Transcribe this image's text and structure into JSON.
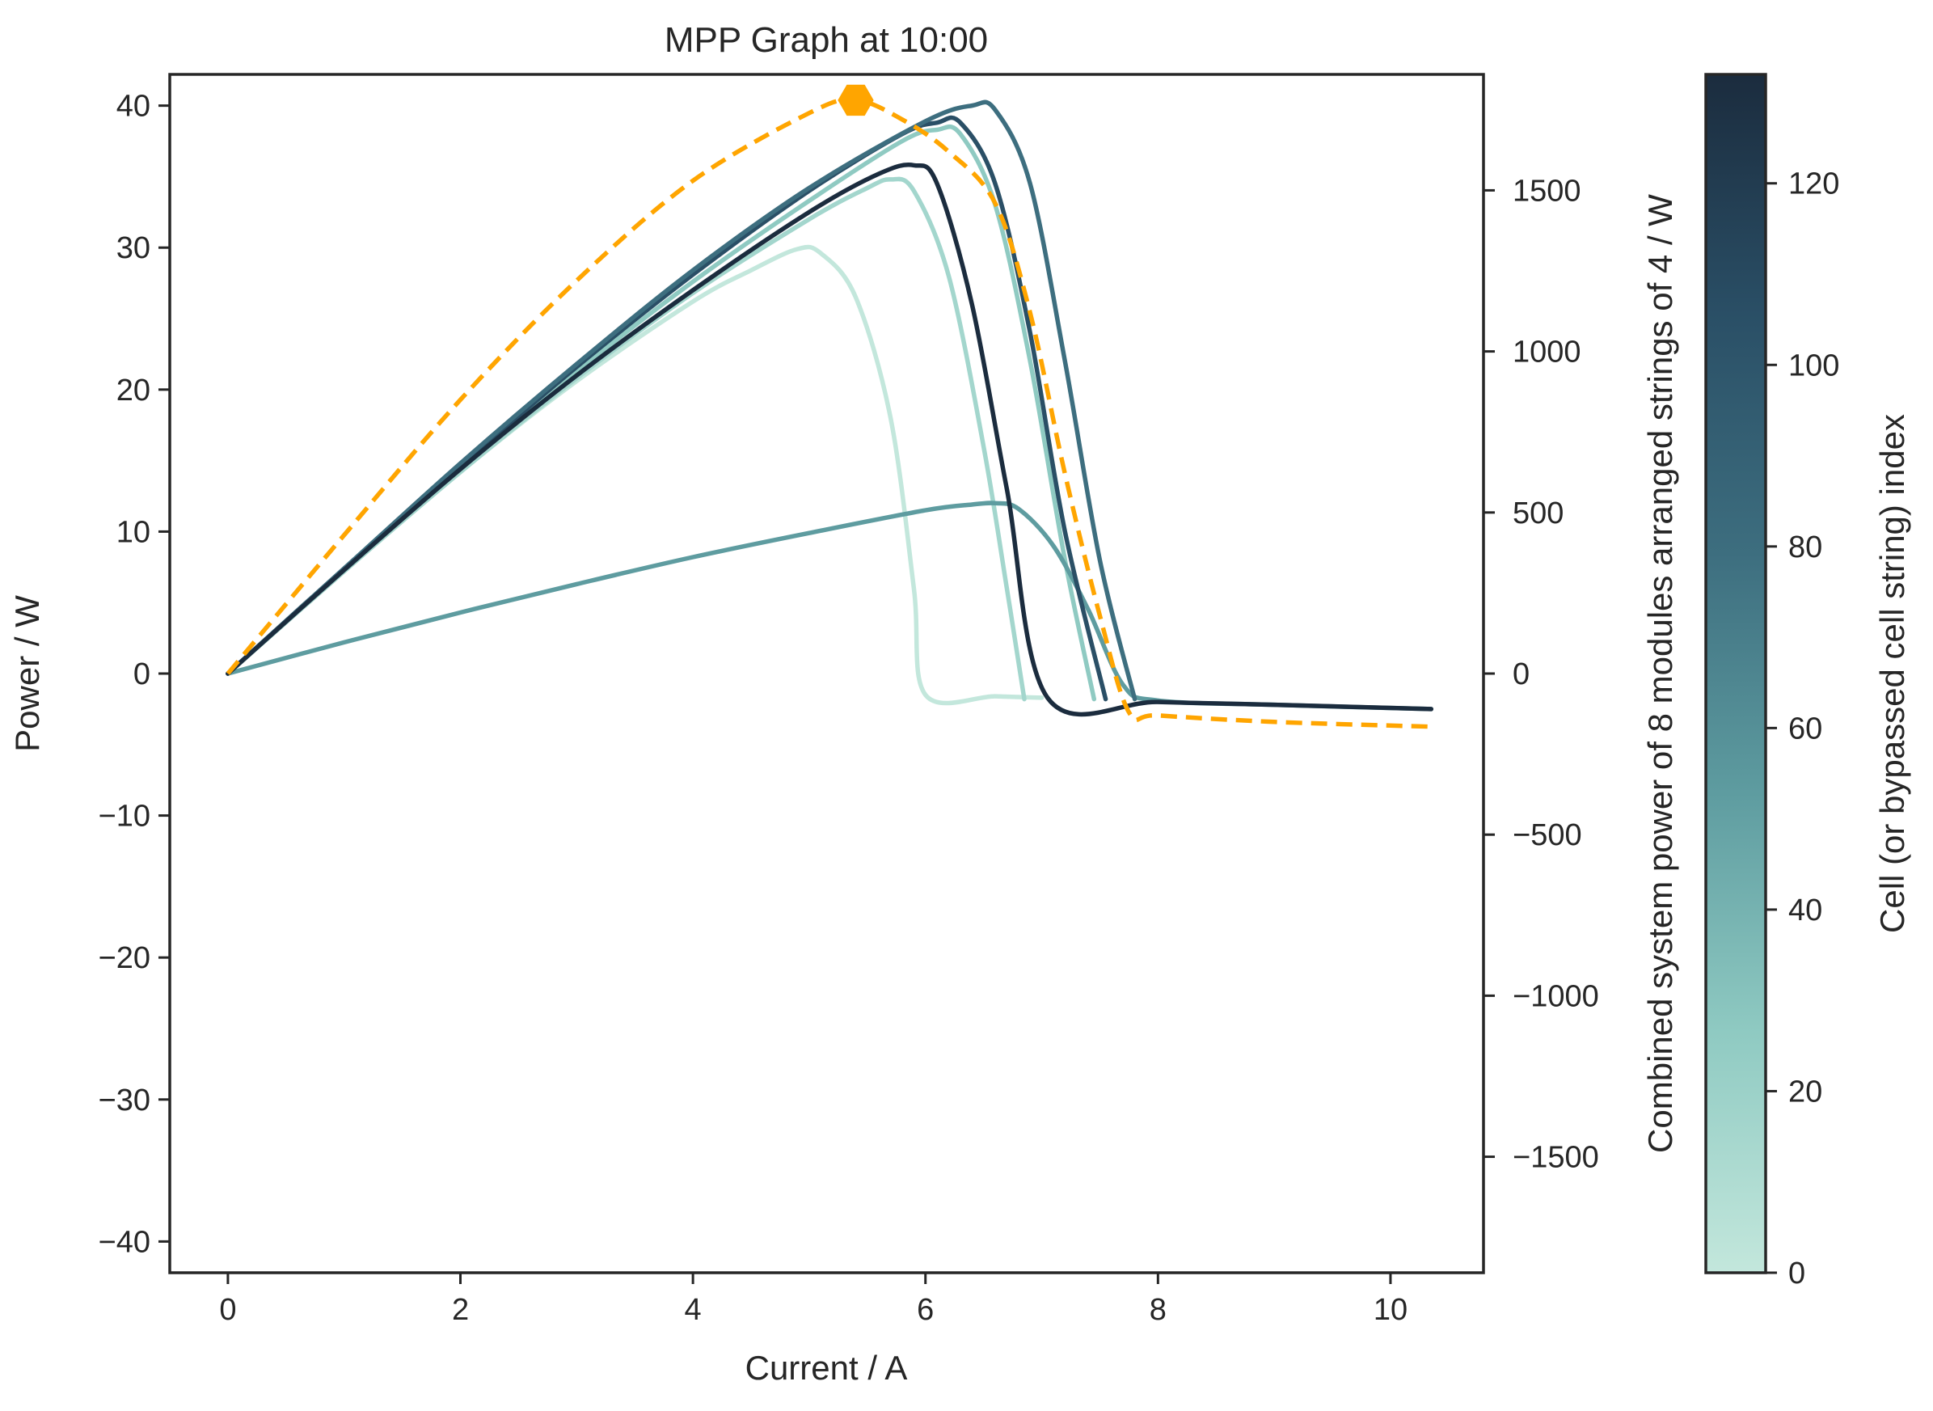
{
  "chart_data": {
    "type": "line",
    "title": "MPP Graph at 10:00",
    "xlabel": "Current / A",
    "ylabel": "Power / W",
    "y2label": "Combined system power of 8 modules arranged strings of 4 / W",
    "colorbar_label": "Cell (or bypassed cell string) index",
    "xlim": [
      -0.5,
      10.8
    ],
    "ylim": [
      -42.2,
      42.2
    ],
    "y2lim": [
      -1860,
      1860
    ],
    "colorbar_lim": [
      0,
      132
    ],
    "xticks": [
      0,
      2,
      4,
      6,
      8,
      10
    ],
    "yticks": [
      40,
      30,
      20,
      10,
      0,
      -10,
      -20,
      -30,
      -40
    ],
    "y2ticks": [
      1500,
      1000,
      500,
      0,
      -500,
      -1000,
      -1500
    ],
    "colorbar_ticks": [
      0,
      20,
      40,
      60,
      80,
      100,
      120
    ],
    "xtick_labels": [
      "0",
      "2",
      "4",
      "6",
      "8",
      "10"
    ],
    "ytick_labels": [
      "40",
      "30",
      "20",
      "10",
      "0",
      "−10",
      "−20",
      "−30",
      "−40"
    ],
    "y2tick_labels": [
      "1500",
      "1000",
      "500",
      "0",
      "−500",
      "−1000",
      "−1500"
    ],
    "colorbar_tick_labels": [
      "0",
      "20",
      "40",
      "60",
      "80",
      "100",
      "120"
    ],
    "grid": false,
    "colormap": [
      "#c3e7dc",
      "#8fcac2",
      "#5e9ca0",
      "#3d6e7f",
      "#2a4f66",
      "#1b2c3e"
    ],
    "series": [
      {
        "color": "#c3e7dc",
        "x": [
          0,
          1,
          2,
          3,
          4,
          4.5,
          4.9,
          5.1,
          5.4,
          5.7,
          5.9,
          6.0,
          6.6,
          7.0
        ],
        "y": [
          0,
          7.2,
          14.2,
          20.6,
          26.2,
          28.4,
          29.9,
          29.6,
          26.5,
          18.0,
          6.0,
          -1.5,
          -1.6,
          -1.7
        ]
      },
      {
        "color": "#a3d6cd",
        "x": [
          0,
          1,
          2,
          3,
          4,
          5,
          5.5,
          5.7,
          5.9,
          6.2,
          6.5,
          6.7,
          6.85
        ],
        "y": [
          0,
          7.2,
          14.2,
          20.8,
          26.8,
          32.0,
          34.2,
          34.8,
          34.0,
          28.0,
          16.0,
          6.0,
          -1.8
        ]
      },
      {
        "color": "#8fcac2",
        "x": [
          0,
          1,
          2,
          3,
          4,
          5,
          5.8,
          6.1,
          6.3,
          6.6,
          6.9,
          7.2,
          7.45
        ],
        "y": [
          0,
          7.3,
          14.5,
          21.3,
          27.6,
          33.3,
          37.5,
          38.3,
          38.0,
          33.0,
          22.0,
          8.0,
          -1.8
        ]
      },
      {
        "color": "#5e9ca0",
        "x": [
          0,
          1,
          2,
          3,
          4,
          5,
          6,
          6.4,
          6.6,
          6.8,
          7.1,
          7.4,
          7.7,
          8,
          9,
          10.35
        ],
        "y": [
          0,
          2.2,
          4.3,
          6.3,
          8.2,
          9.9,
          11.5,
          11.9,
          12.0,
          11.6,
          9.0,
          4.5,
          -0.8,
          -1.9,
          -2.2,
          -2.5
        ]
      },
      {
        "color": "#2a4f66",
        "x": [
          0,
          1,
          2,
          3,
          4,
          5,
          5.8,
          6.1,
          6.3,
          6.6,
          6.9,
          7.2,
          7.55
        ],
        "y": [
          0,
          7.4,
          14.6,
          21.6,
          28.1,
          34.0,
          38.0,
          38.8,
          38.8,
          34.5,
          24.0,
          10.0,
          -1.8
        ]
      },
      {
        "color": "#3d6e7f",
        "x": [
          0,
          1,
          2,
          3,
          4,
          5,
          6,
          6.4,
          6.6,
          6.9,
          7.2,
          7.5,
          7.8
        ],
        "y": [
          0,
          7.4,
          14.8,
          21.8,
          28.4,
          34.2,
          38.9,
          40.0,
          39.7,
          34.5,
          22.0,
          8.0,
          -1.8
        ]
      },
      {
        "color": "#1b2c3e",
        "x": [
          0,
          1,
          2,
          3,
          4,
          5,
          5.6,
          5.9,
          6.1,
          6.4,
          6.7,
          7.05,
          8,
          9,
          10.35
        ],
        "y": [
          0,
          7.3,
          14.4,
          21.0,
          27.0,
          32.5,
          35.2,
          35.8,
          34.5,
          26.0,
          13.0,
          -1.7,
          -2.0,
          -2.2,
          -2.5
        ]
      }
    ],
    "combined": {
      "color": "#ffa500",
      "dashed": true,
      "axis": "right",
      "x": [
        0,
        1,
        2,
        3,
        4,
        5,
        5.4,
        5.8,
        6.2,
        6.6,
        6.9,
        7.2,
        7.5,
        7.75,
        8.0,
        9.0,
        10.35
      ],
      "y": [
        0,
        430,
        850,
        1220,
        1530,
        1740,
        1780,
        1720,
        1620,
        1460,
        1120,
        620,
        180,
        -120,
        -130,
        -150,
        -165
      ]
    },
    "mpp_marker": {
      "x": 5.4,
      "y": 1780,
      "axis": "right",
      "shape": "hexagon",
      "color": "#ffa500"
    }
  }
}
